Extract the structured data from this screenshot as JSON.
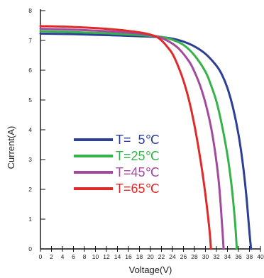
{
  "chart_data": {
    "type": "line",
    "title": "",
    "xlabel": "Voltage(V)",
    "ylabel": "Current(A)",
    "xlim": [
      0,
      40
    ],
    "ylim": [
      0,
      8
    ],
    "x_ticks": [
      "0",
      "2",
      "4",
      "6",
      "8",
      "10",
      "12",
      "14",
      "16",
      "18",
      "20",
      "22",
      "24",
      "26",
      "28",
      "30",
      "32",
      "34",
      "36",
      "38",
      "40"
    ],
    "y_ticks": [
      "0",
      "1",
      "2",
      "3",
      "4",
      "5",
      "6",
      "7",
      "8"
    ],
    "grid": false,
    "legend_position": "center-left",
    "series": [
      {
        "name": "T=  5℃",
        "color": "#2d3e96",
        "points": [
          [
            0,
            7.23
          ],
          [
            6,
            7.21
          ],
          [
            12,
            7.18
          ],
          [
            18,
            7.14
          ],
          [
            22,
            7.11
          ],
          [
            24,
            7.06
          ],
          [
            26,
            6.96
          ],
          [
            28,
            6.8
          ],
          [
            30,
            6.55
          ],
          [
            32,
            6.15
          ],
          [
            33,
            5.85
          ],
          [
            34,
            5.4
          ],
          [
            35,
            4.75
          ],
          [
            36,
            3.85
          ],
          [
            36.8,
            2.85
          ],
          [
            37.4,
            1.85
          ],
          [
            37.8,
            1.0
          ],
          [
            38.1,
            0.35
          ],
          [
            38.3,
            0
          ]
        ]
      },
      {
        "name": "T=25℃",
        "color": "#35b34a",
        "points": [
          [
            0,
            7.31
          ],
          [
            6,
            7.28
          ],
          [
            12,
            7.24
          ],
          [
            18,
            7.18
          ],
          [
            22,
            7.12
          ],
          [
            24,
            7.02
          ],
          [
            26,
            6.85
          ],
          [
            28,
            6.5
          ],
          [
            30,
            5.95
          ],
          [
            31,
            5.5
          ],
          [
            32,
            4.95
          ],
          [
            33,
            4.15
          ],
          [
            34,
            3.15
          ],
          [
            34.7,
            2.2
          ],
          [
            35.2,
            1.3
          ],
          [
            35.5,
            0.6
          ],
          [
            35.7,
            0
          ]
        ]
      },
      {
        "name": "T=45℃",
        "color": "#a34a9f",
        "points": [
          [
            0,
            7.39
          ],
          [
            6,
            7.36
          ],
          [
            12,
            7.31
          ],
          [
            18,
            7.23
          ],
          [
            21,
            7.14
          ],
          [
            23,
            7.0
          ],
          [
            25,
            6.75
          ],
          [
            27,
            6.3
          ],
          [
            28,
            5.95
          ],
          [
            29,
            5.5
          ],
          [
            30,
            4.9
          ],
          [
            31,
            4.1
          ],
          [
            31.8,
            3.2
          ],
          [
            32.4,
            2.3
          ],
          [
            32.8,
            1.4
          ],
          [
            33.1,
            0.6
          ],
          [
            33.3,
            0
          ]
        ]
      },
      {
        "name": "T=65℃",
        "color": "#e02a2a",
        "points": [
          [
            0,
            7.48
          ],
          [
            6,
            7.45
          ],
          [
            12,
            7.39
          ],
          [
            16,
            7.32
          ],
          [
            19,
            7.24
          ],
          [
            21,
            7.13
          ],
          [
            22,
            7.0
          ],
          [
            23,
            6.8
          ],
          [
            24,
            6.55
          ],
          [
            25,
            6.15
          ],
          [
            26,
            5.65
          ],
          [
            27,
            5.0
          ],
          [
            28,
            4.15
          ],
          [
            29,
            3.1
          ],
          [
            29.8,
            2.1
          ],
          [
            30.4,
            1.2
          ],
          [
            30.8,
            0.5
          ],
          [
            31.0,
            0
          ]
        ]
      }
    ]
  }
}
